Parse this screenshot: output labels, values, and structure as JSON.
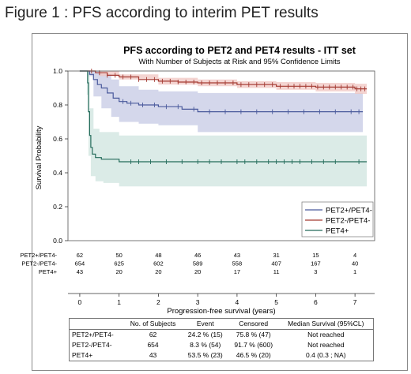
{
  "figure_title": "Figure 1 : PFS according to interim PET results",
  "chart_data": {
    "type": "line",
    "title": "PFS according to PET2 and PET4 results - ITT set",
    "subtitle": "With Number of Subjects at Risk and 95% Confidence Limits",
    "xlabel": "Progression-free survival (years)",
    "ylabel": "Survival Probability",
    "xlim": [
      -0.3,
      7.5
    ],
    "ylim": [
      0.0,
      1.0
    ],
    "x_ticks": [
      0,
      1,
      2,
      3,
      4,
      5,
      6,
      7
    ],
    "y_ticks": [
      "0.0",
      "0.2",
      "0.4",
      "0.6",
      "0.8",
      "1.0"
    ],
    "legend_position": "lower-right",
    "series": [
      {
        "name": "PET2+/PET4-",
        "color": "#4a5a9c",
        "band_color": "#c5c9e4",
        "points": [
          [
            0,
            1.0
          ],
          [
            0.2,
            1.0
          ],
          [
            0.25,
            0.98
          ],
          [
            0.35,
            0.95
          ],
          [
            0.45,
            0.92
          ],
          [
            0.55,
            0.9
          ],
          [
            0.7,
            0.87
          ],
          [
            0.85,
            0.84
          ],
          [
            1.0,
            0.82
          ],
          [
            1.2,
            0.81
          ],
          [
            1.5,
            0.8
          ],
          [
            2.0,
            0.79
          ],
          [
            2.6,
            0.775
          ],
          [
            3.0,
            0.76
          ],
          [
            7.2,
            0.76
          ]
        ],
        "ci_upper": [
          [
            0,
            1.0
          ],
          [
            0.2,
            1.0
          ],
          [
            0.35,
            1.0
          ],
          [
            0.55,
            0.98
          ],
          [
            0.8,
            0.95
          ],
          [
            1.0,
            0.91
          ],
          [
            1.5,
            0.89
          ],
          [
            2.0,
            0.88
          ],
          [
            3.0,
            0.87
          ],
          [
            7.2,
            0.87
          ]
        ],
        "ci_lower": [
          [
            0,
            1.0
          ],
          [
            0.2,
            0.97
          ],
          [
            0.35,
            0.85
          ],
          [
            0.55,
            0.78
          ],
          [
            0.8,
            0.73
          ],
          [
            1.0,
            0.7
          ],
          [
            1.5,
            0.69
          ],
          [
            2.0,
            0.68
          ],
          [
            3.0,
            0.64
          ],
          [
            7.2,
            0.64
          ]
        ],
        "censor_x": [
          1.1,
          1.3,
          1.6,
          1.9,
          2.2,
          2.5,
          2.9,
          3.3,
          3.7,
          4.1,
          4.5,
          4.9,
          5.3,
          5.7,
          6.1,
          6.5,
          6.9,
          7.1
        ]
      },
      {
        "name": "PET2-/PET4-",
        "color": "#a33a32",
        "band_color": "#f0c6c2",
        "points": [
          [
            0,
            1.0
          ],
          [
            0.2,
            1.0
          ],
          [
            0.4,
            0.99
          ],
          [
            0.7,
            0.975
          ],
          [
            1.0,
            0.965
          ],
          [
            1.5,
            0.95
          ],
          [
            2.0,
            0.94
          ],
          [
            2.5,
            0.935
          ],
          [
            3.0,
            0.93
          ],
          [
            4.0,
            0.92
          ],
          [
            5.0,
            0.91
          ],
          [
            6.0,
            0.905
          ],
          [
            7.0,
            0.895
          ],
          [
            7.3,
            0.895
          ]
        ],
        "ci_upper": [
          [
            0,
            1.0
          ],
          [
            0.5,
            1.0
          ],
          [
            1.0,
            0.98
          ],
          [
            2.0,
            0.96
          ],
          [
            3.0,
            0.95
          ],
          [
            4.0,
            0.94
          ],
          [
            5.0,
            0.935
          ],
          [
            6.0,
            0.93
          ],
          [
            7.0,
            0.925
          ],
          [
            7.3,
            0.925
          ]
        ],
        "ci_lower": [
          [
            0,
            1.0
          ],
          [
            0.5,
            0.97
          ],
          [
            1.0,
            0.95
          ],
          [
            2.0,
            0.92
          ],
          [
            3.0,
            0.91
          ],
          [
            4.0,
            0.9
          ],
          [
            5.0,
            0.89
          ],
          [
            6.0,
            0.88
          ],
          [
            7.0,
            0.865
          ],
          [
            7.3,
            0.865
          ]
        ],
        "censor_x": [
          0.3,
          0.5,
          0.7,
          0.9,
          1.1,
          1.3,
          1.5,
          1.7,
          1.9,
          2.1,
          2.3,
          2.5,
          2.7,
          2.9,
          3.1,
          3.3,
          3.5,
          3.7,
          3.9,
          4.1,
          4.3,
          4.5,
          4.7,
          4.9,
          5.1,
          5.3,
          5.45,
          5.6,
          5.75,
          5.9,
          6.05,
          6.2,
          6.35,
          6.5,
          6.65,
          6.8,
          6.95,
          7.05,
          7.15,
          7.25
        ]
      },
      {
        "name": "PET4+",
        "color": "#236b5a",
        "band_color": "#cfe4df",
        "points": [
          [
            0,
            1.0
          ],
          [
            0.18,
            1.0
          ],
          [
            0.2,
            0.93
          ],
          [
            0.22,
            0.76
          ],
          [
            0.25,
            0.62
          ],
          [
            0.28,
            0.55
          ],
          [
            0.32,
            0.51
          ],
          [
            0.4,
            0.49
          ],
          [
            0.55,
            0.48
          ],
          [
            1.0,
            0.465
          ],
          [
            7.3,
            0.465
          ]
        ],
        "ci_upper": [
          [
            0,
            1.0
          ],
          [
            0.18,
            1.0
          ],
          [
            0.25,
            0.78
          ],
          [
            0.35,
            0.66
          ],
          [
            0.5,
            0.64
          ],
          [
            1.0,
            0.62
          ],
          [
            7.3,
            0.62
          ]
        ],
        "ci_lower": [
          [
            0,
            1.0
          ],
          [
            0.18,
            0.86
          ],
          [
            0.22,
            0.5
          ],
          [
            0.28,
            0.38
          ],
          [
            0.4,
            0.35
          ],
          [
            0.6,
            0.34
          ],
          [
            1.0,
            0.32
          ],
          [
            7.3,
            0.32
          ]
        ],
        "censor_x": [
          1.3,
          1.5,
          1.8,
          2.2,
          2.6,
          3.0,
          3.3,
          3.6,
          4.0,
          4.2,
          4.5,
          4.8,
          5.0,
          5.2,
          5.4,
          5.6,
          5.9,
          6.2,
          6.5,
          7.1
        ]
      }
    ],
    "at_risk": {
      "x": [
        0,
        1,
        2,
        3,
        4,
        5,
        6,
        7
      ],
      "rows": [
        {
          "label": "PET2+/PET4-",
          "values": [
            "62",
            "50",
            "48",
            "46",
            "43",
            "31",
            "15",
            "4"
          ]
        },
        {
          "label": "PET2-/PET4-",
          "values": [
            "654",
            "625",
            "602",
            "589",
            "558",
            "407",
            "167",
            "40"
          ]
        },
        {
          "label": "PET4+",
          "values": [
            "43",
            "20",
            "20",
            "20",
            "17",
            "11",
            "3",
            "1"
          ]
        }
      ]
    },
    "summary_table": {
      "headers": [
        "",
        "No. of Subjects",
        "Event",
        "Censored",
        "Median Survival (95%CL)"
      ],
      "rows": [
        [
          "PET2+/PET4-",
          "62",
          "24.2 % (15)",
          "75.8 % (47)",
          "Not reached"
        ],
        [
          "PET2-/PET4-",
          "654",
          "8.3 % (54)",
          "91.7 % (600)",
          "Not reached"
        ],
        [
          "PET4+",
          "43",
          "53.5 % (23)",
          "46.5 % (20)",
          "0.4 (0.3 ; NA)"
        ]
      ]
    }
  }
}
